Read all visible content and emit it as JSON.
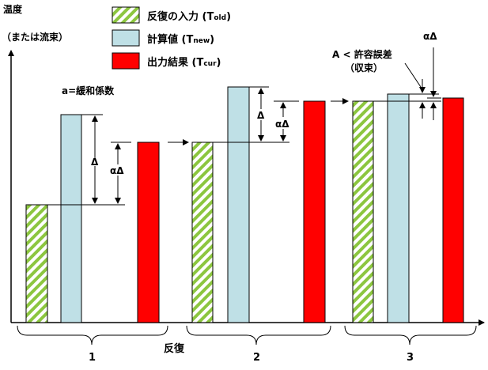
{
  "axis": {
    "y_label_line1": "温度",
    "y_label_line2": "（または流束）",
    "x_label": "反復"
  },
  "legend": {
    "items": [
      {
        "key": "old",
        "label": "反復の入力 (T",
        "sub": "old",
        "close": ")",
        "fill": "hatch-green"
      },
      {
        "key": "new",
        "label": "計算値 (T",
        "sub": "new",
        "close": ")",
        "fill": "#bfe0e6"
      },
      {
        "key": "cur",
        "label": "出力結果 (T",
        "sub": "cur",
        "close": ")",
        "fill": "#ff0000"
      }
    ]
  },
  "annotations": {
    "relaxation": "a=緩和係数",
    "delta": "Δ",
    "alpha_delta": "αΔ",
    "convergence_line1": "A < 許容誤差",
    "convergence_line2": "（収束）"
  },
  "iterations": [
    {
      "label": "1",
      "t_old": 0.5,
      "t_new": 0.88,
      "t_cur": 0.76
    },
    {
      "label": "2",
      "t_old": 0.76,
      "t_new": 1.0,
      "t_cur": 0.92
    },
    {
      "label": "3",
      "t_old": 0.92,
      "t_new": 0.96,
      "t_cur": 0.94
    }
  ],
  "colors": {
    "hatch_green": "#8cc63f",
    "t_new": "#bfe0e6",
    "t_cur": "#ff0000",
    "line": "#000000"
  }
}
